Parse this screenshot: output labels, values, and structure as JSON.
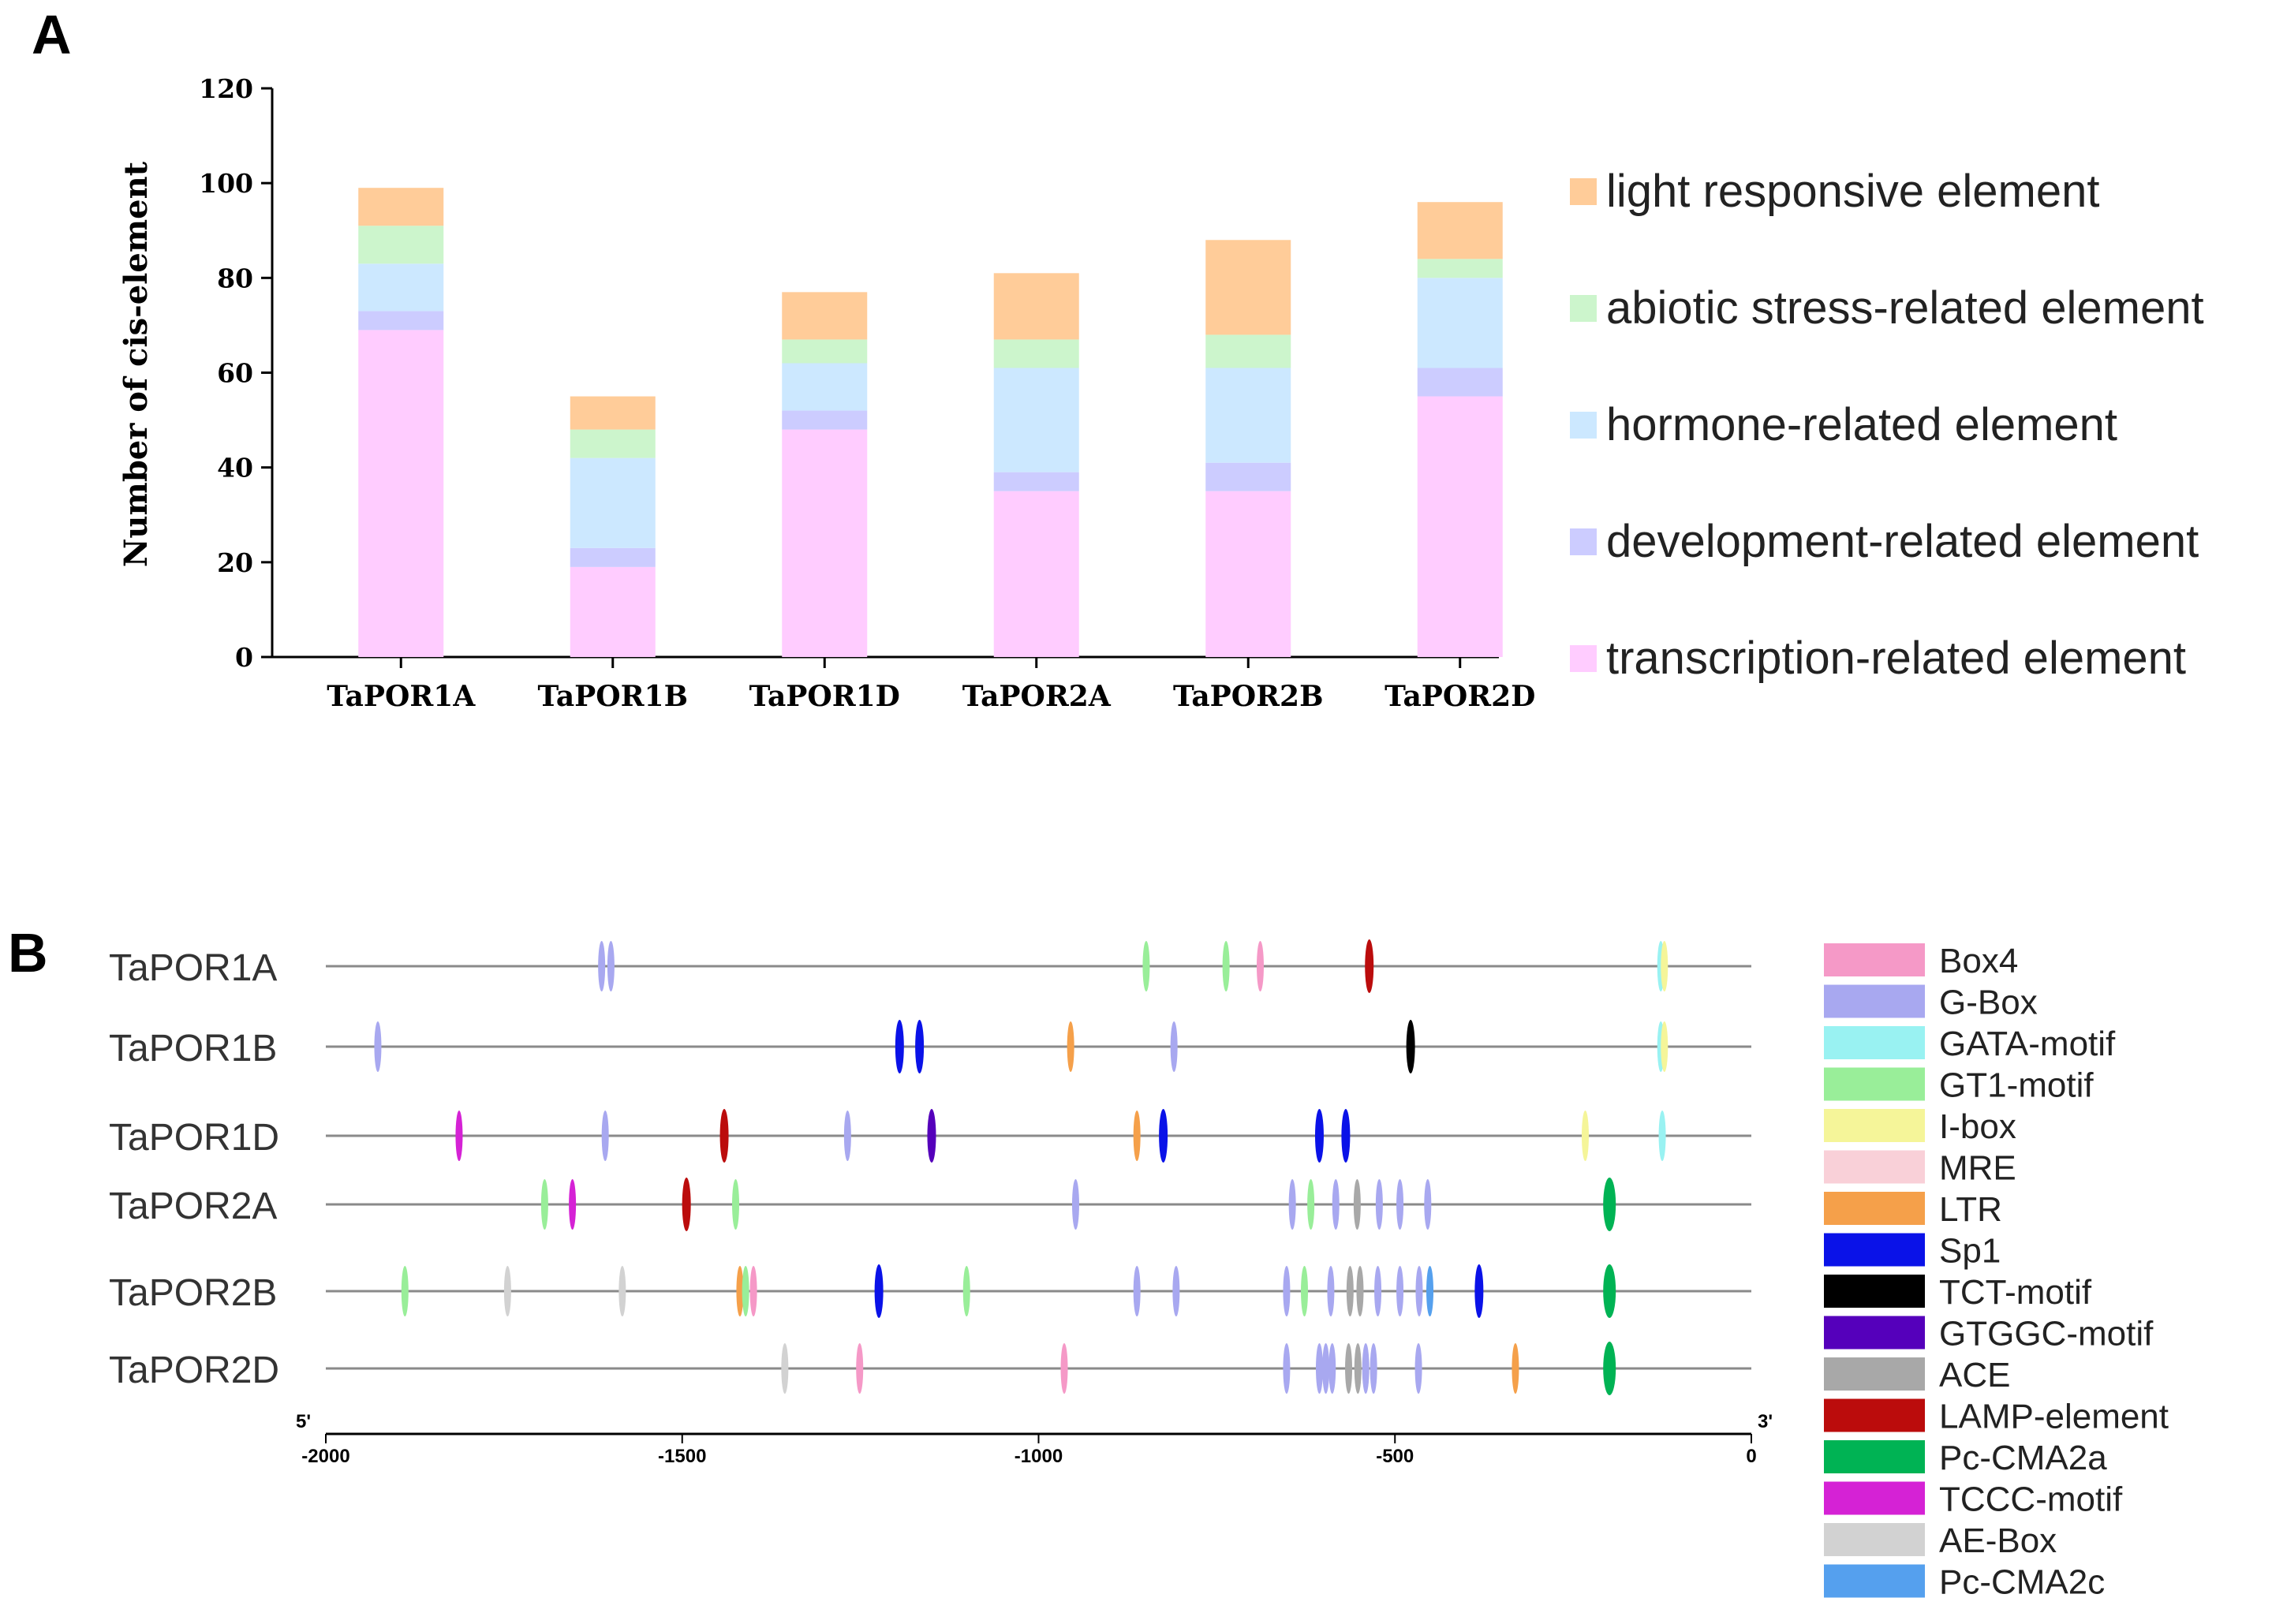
{
  "chart_data": [
    {
      "type": "bar",
      "stacked": true,
      "panel_label": "A",
      "title": "",
      "xlabel": "",
      "ylabel": "Number of cis-element",
      "ylim": [
        0,
        120
      ],
      "yticks": [
        0,
        20,
        40,
        60,
        80,
        100,
        120
      ],
      "categories": [
        "TaPOR1A",
        "TaPOR1B",
        "TaPOR1D",
        "TaPOR2A",
        "TaPOR2B",
        "TaPOR2D"
      ],
      "series": [
        {
          "name": "transcription-related element",
          "color": "#ffccff",
          "values": [
            69,
            19,
            48,
            35,
            35,
            55
          ]
        },
        {
          "name": "development-related element",
          "color": "#ccccff",
          "values": [
            4,
            4,
            4,
            4,
            6,
            6
          ]
        },
        {
          "name": "hormone-related element",
          "color": "#cce8ff",
          "values": [
            10,
            19,
            10,
            22,
            20,
            19
          ]
        },
        {
          "name": "abiotic stress-related element",
          "color": "#ccf5cc",
          "values": [
            8,
            6,
            5,
            6,
            7,
            4
          ]
        },
        {
          "name": "light responsive element",
          "color": "#ffcc99",
          "values": [
            8,
            7,
            10,
            14,
            20,
            12
          ]
        }
      ],
      "legend_order": [
        "light responsive element",
        "abiotic stress-related element",
        "hormone-related element",
        "development-related element",
        "transcription-related element"
      ],
      "legend_position": "right"
    },
    {
      "type": "scatter",
      "subtype": "promoter-element map",
      "panel_label": "B",
      "xlim": [
        -2000,
        0
      ],
      "xticks": [
        -2000,
        -1500,
        -1000,
        -500,
        0
      ],
      "end_labels": {
        "start": "5'",
        "end": "3'"
      },
      "genes": [
        "TaPOR1A",
        "TaPOR1B",
        "TaPOR1D",
        "TaPOR2A",
        "TaPOR2B",
        "TaPOR2D"
      ],
      "legend": [
        {
          "name": "Box4",
          "color": "#f599c7"
        },
        {
          "name": "G-Box",
          "color": "#a8a8f0"
        },
        {
          "name": "GATA-motif",
          "color": "#99f2f2"
        },
        {
          "name": "GT1-motif",
          "color": "#99ee99"
        },
        {
          "name": "I-box",
          "color": "#f5f599"
        },
        {
          "name": "MRE",
          "color": "#f9d0d8"
        },
        {
          "name": "LTR",
          "color": "#f5a04a"
        },
        {
          "name": "Sp1",
          "color": "#0a12e8"
        },
        {
          "name": "TCT-motif",
          "color": "#000000"
        },
        {
          "name": "GTGGC-motif",
          "color": "#5500bb"
        },
        {
          "name": "ACE",
          "color": "#a8a8a8"
        },
        {
          "name": "LAMP-element",
          "color": "#bb0c0c"
        },
        {
          "name": "Pc-CMA2a",
          "color": "#00b354"
        },
        {
          "name": "TCCC-motif",
          "color": "#d522d5"
        },
        {
          "name": "AE-Box",
          "color": "#d2d2d2"
        },
        {
          "name": "Pc-CMA2c",
          "color": "#55a0ee"
        }
      ],
      "elements": {
        "TaPOR1A": [
          {
            "x": -1613,
            "type": "G-Box"
          },
          {
            "x": -1600,
            "type": "G-Box"
          },
          {
            "x": -849,
            "type": "GT1-motif"
          },
          {
            "x": -737,
            "type": "GT1-motif"
          },
          {
            "x": -689,
            "type": "Box4"
          },
          {
            "x": -536,
            "type": "LAMP-element"
          },
          {
            "x": -127,
            "type": "GATA-motif"
          },
          {
            "x": -122,
            "type": "I-box"
          }
        ],
        "TaPOR1B": [
          {
            "x": -1927,
            "type": "G-Box"
          },
          {
            "x": -1195,
            "type": "Sp1"
          },
          {
            "x": -1167,
            "type": "Sp1"
          },
          {
            "x": -955,
            "type": "LTR"
          },
          {
            "x": -810,
            "type": "G-Box"
          },
          {
            "x": -478,
            "type": "TCT-motif"
          },
          {
            "x": -127,
            "type": "GATA-motif"
          },
          {
            "x": -122,
            "type": "I-box"
          }
        ],
        "TaPOR1D": [
          {
            "x": -1813,
            "type": "TCCC-motif"
          },
          {
            "x": -1608,
            "type": "G-Box"
          },
          {
            "x": -1441,
            "type": "LAMP-element"
          },
          {
            "x": -1268,
            "type": "G-Box"
          },
          {
            "x": -1150,
            "type": "GTGGC-motif"
          },
          {
            "x": -862,
            "type": "LTR"
          },
          {
            "x": -825,
            "type": "Sp1"
          },
          {
            "x": -606,
            "type": "Sp1"
          },
          {
            "x": -569,
            "type": "Sp1"
          },
          {
            "x": -233,
            "type": "I-box"
          },
          {
            "x": -125,
            "type": "GATA-motif"
          }
        ],
        "TaPOR2A": [
          {
            "x": -1693,
            "type": "GT1-motif"
          },
          {
            "x": -1654,
            "type": "TCCC-motif"
          },
          {
            "x": -1494,
            "type": "LAMP-element"
          },
          {
            "x": -1425,
            "type": "GT1-motif"
          },
          {
            "x": -948,
            "type": "G-Box"
          },
          {
            "x": -644,
            "type": "G-Box"
          },
          {
            "x": -618,
            "type": "GT1-motif"
          },
          {
            "x": -583,
            "type": "G-Box"
          },
          {
            "x": -553,
            "type": "ACE"
          },
          {
            "x": -522,
            "type": "G-Box"
          },
          {
            "x": -493,
            "type": "G-Box"
          },
          {
            "x": -454,
            "type": "G-Box"
          },
          {
            "x": -199,
            "type": "Pc-CMA2a"
          }
        ],
        "TaPOR2B": [
          {
            "x": -1889,
            "type": "GT1-motif"
          },
          {
            "x": -1745,
            "type": "AE-Box"
          },
          {
            "x": -1584,
            "type": "AE-Box"
          },
          {
            "x": -1419,
            "type": "LTR"
          },
          {
            "x": -1411,
            "type": "GT1-motif"
          },
          {
            "x": -1400,
            "type": "Box4"
          },
          {
            "x": -1224,
            "type": "Sp1"
          },
          {
            "x": -1101,
            "type": "GT1-motif"
          },
          {
            "x": -862,
            "type": "G-Box"
          },
          {
            "x": -807,
            "type": "G-Box"
          },
          {
            "x": -652,
            "type": "G-Box"
          },
          {
            "x": -627,
            "type": "GT1-motif"
          },
          {
            "x": -590,
            "type": "G-Box"
          },
          {
            "x": -563,
            "type": "ACE"
          },
          {
            "x": -549,
            "type": "ACE"
          },
          {
            "x": -524,
            "type": "G-Box"
          },
          {
            "x": -493,
            "type": "G-Box"
          },
          {
            "x": -466,
            "type": "G-Box"
          },
          {
            "x": -451,
            "type": "Pc-CMA2c"
          },
          {
            "x": -382,
            "type": "Sp1"
          },
          {
            "x": -199,
            "type": "Pc-CMA2a"
          }
        ],
        "TaPOR2D": [
          {
            "x": -1356,
            "type": "AE-Box"
          },
          {
            "x": -1251,
            "type": "Box4"
          },
          {
            "x": -964,
            "type": "Box4"
          },
          {
            "x": -652,
            "type": "G-Box"
          },
          {
            "x": -606,
            "type": "G-Box"
          },
          {
            "x": -597,
            "type": "G-Box"
          },
          {
            "x": -588,
            "type": "G-Box"
          },
          {
            "x": -565,
            "type": "ACE"
          },
          {
            "x": -552,
            "type": "ACE"
          },
          {
            "x": -541,
            "type": "G-Box"
          },
          {
            "x": -530,
            "type": "G-Box"
          },
          {
            "x": -467,
            "type": "G-Box"
          },
          {
            "x": -331,
            "type": "LTR"
          },
          {
            "x": -199,
            "type": "Pc-CMA2a"
          }
        ]
      }
    }
  ]
}
